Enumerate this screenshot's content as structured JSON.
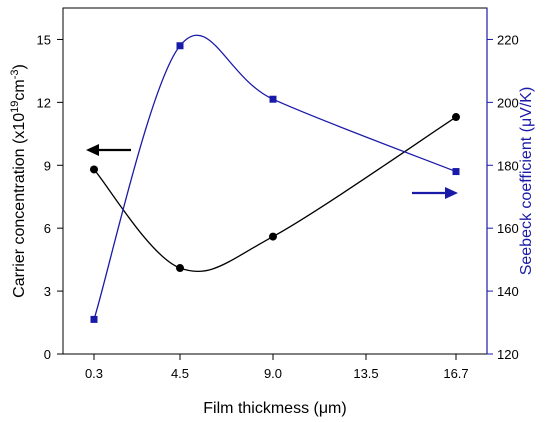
{
  "chart_data": {
    "type": "line",
    "xlabel": "Film thickmess (μm)",
    "x_categories": [
      "0.3",
      "4.5",
      "9.0",
      "13.5",
      "16.7"
    ],
    "ylabel_left": {
      "prefix": "Carrier concentration (x10",
      "exp1": "19",
      "mid": "cm",
      "exp2": "-3",
      "suffix": ")"
    },
    "ylabel_right": "Seebeck coefficient (μV/K)",
    "ylim_left": [
      0,
      16.5
    ],
    "ylim_right": [
      120,
      230
    ],
    "yticks_left": [
      0,
      3,
      6,
      9,
      12,
      15
    ],
    "yticks_right": [
      120,
      140,
      160,
      180,
      200,
      220
    ],
    "left_axis_color": "#000000",
    "right_axis_color": "#1a1aa8",
    "grid": false,
    "legend": "arrows",
    "series": [
      {
        "axis": "left",
        "color": "#000000",
        "marker": "circle",
        "x": [
          0.3,
          4.5,
          9.0,
          16.7
        ],
        "values": [
          8.8,
          4.1,
          5.6,
          11.3
        ]
      },
      {
        "axis": "right",
        "color": "#1a1aa8",
        "marker": "square",
        "x": [
          0.3,
          4.5,
          9.0,
          16.7
        ],
        "values": [
          131,
          218,
          201,
          178
        ]
      }
    ],
    "annotations": [
      {
        "type": "arrow",
        "direction": "left",
        "points_to": "left-axis",
        "color": "#000000"
      },
      {
        "type": "arrow",
        "direction": "right",
        "points_to": "right-axis",
        "color": "#1a1aa8"
      }
    ]
  }
}
